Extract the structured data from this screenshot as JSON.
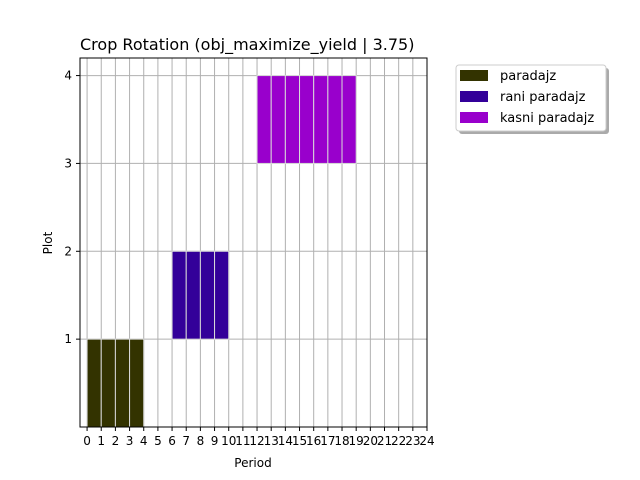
{
  "chart_data": {
    "type": "bar",
    "title": "Crop Rotation (obj_maximize_yield | 3.75)",
    "xlabel": "Period",
    "ylabel": "Plot",
    "xlim": [
      -0.5,
      24
    ],
    "ylim": [
      0,
      4.2
    ],
    "xticks": [
      0,
      1,
      2,
      3,
      4,
      5,
      6,
      7,
      8,
      9,
      10,
      11,
      12,
      13,
      14,
      15,
      16,
      17,
      18,
      19,
      20,
      21,
      22,
      23,
      24
    ],
    "yticks": [
      1,
      2,
      3,
      4
    ],
    "grid": true,
    "legend_position": "outside-top-right",
    "series": [
      {
        "name": "paradajz",
        "color": "#333300",
        "blocks": [
          {
            "plot": 1,
            "periods": [
              0,
              1,
              2,
              3
            ]
          }
        ]
      },
      {
        "name": "rani paradajz",
        "color": "#330099",
        "blocks": [
          {
            "plot": 2,
            "periods": [
              6,
              7,
              8,
              9
            ]
          }
        ]
      },
      {
        "name": "kasni paradajz",
        "color": "#9900cc",
        "blocks": [
          {
            "plot": 4,
            "periods": [
              12,
              13,
              14,
              15,
              16,
              17,
              18
            ]
          }
        ]
      }
    ]
  }
}
